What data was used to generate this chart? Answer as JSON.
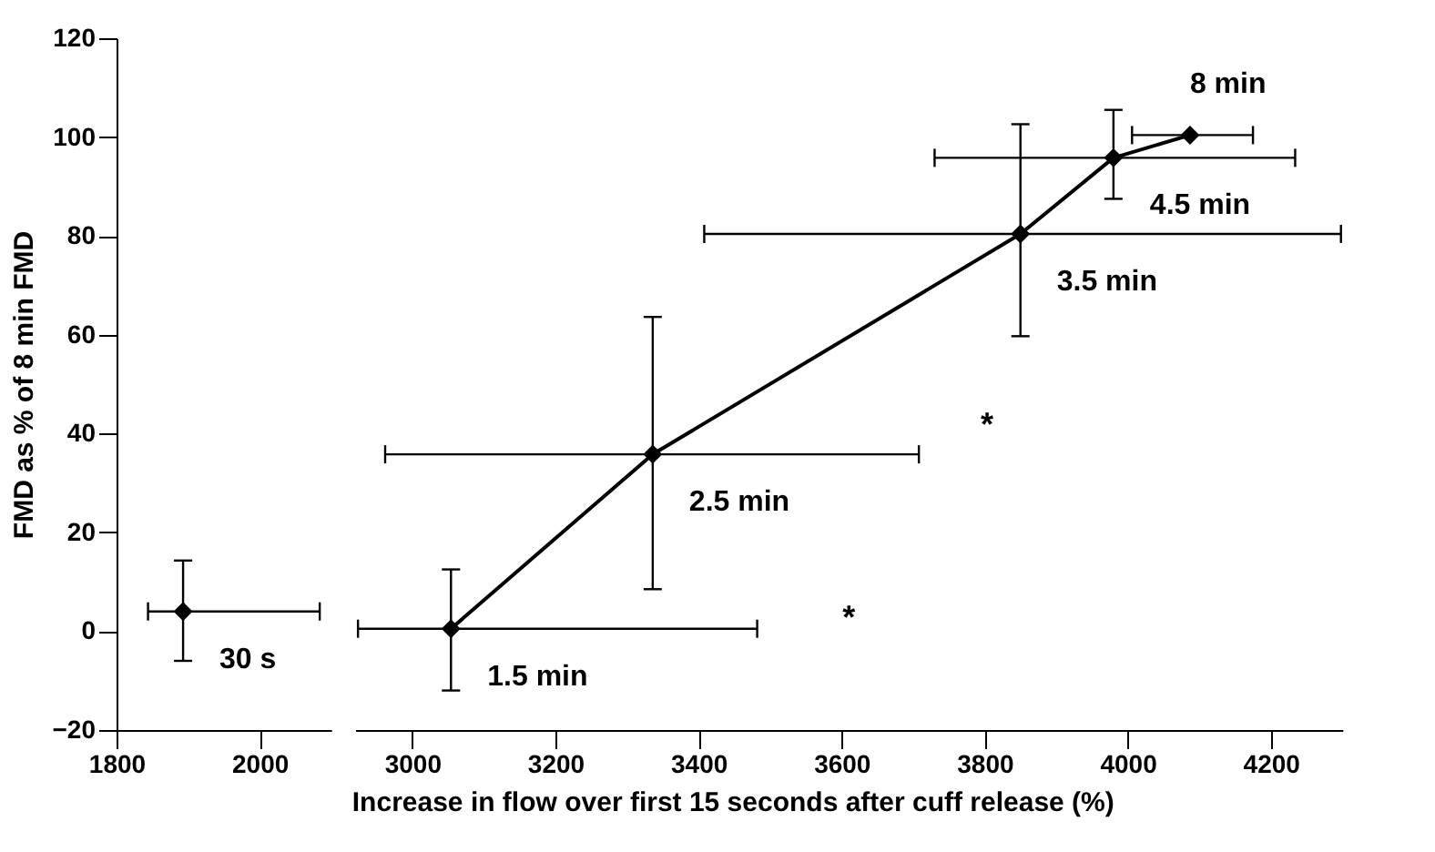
{
  "chart_data": [
    {
      "type": "scatter",
      "marker": "diamond",
      "ylabel": "FMD as % of 8 min FMD",
      "xlim": [
        1800,
        2100
      ],
      "xticks": [
        1800,
        2000
      ],
      "ylim": [
        -20,
        120
      ],
      "yticks": [
        -20,
        0,
        20,
        40,
        60,
        80,
        100,
        120
      ],
      "x": [
        1893
      ],
      "series": [
        {
          "color": "#000000",
          "values": [
            4
          ],
          "errors": [
            [
              -6,
              14.3
            ]
          ],
          "xerrors": [
            [
              1844,
              2084
            ]
          ]
        }
      ],
      "annotations": [
        {
          "text": "30 s",
          "x": 1893,
          "y": 4
        }
      ]
    },
    {
      "type": "line",
      "marker": "diamond",
      "tick_labels": "x",
      "xlabel": "Increase in flow over first 15 seconds after cuff release (%)",
      "xlim": [
        2920,
        4300
      ],
      "xticks": [
        3000,
        3200,
        3400,
        3600,
        3800,
        4000,
        4200
      ],
      "ylim": [
        -20,
        120
      ],
      "yticks": [
        -20,
        0,
        20,
        40,
        60,
        80,
        100,
        120
      ],
      "x": [
        3054,
        3336,
        3850,
        3980,
        4087
      ],
      "series": [
        {
          "color": "#000000",
          "values": [
            0.5,
            35.8,
            80.4,
            95.8,
            100.4
          ],
          "errors": [
            [
              -12,
              12.5
            ],
            [
              8.5,
              63.6
            ],
            [
              59.7,
              102.6
            ],
            [
              87.5,
              105.5
            ],
            null
          ],
          "xerrors": [
            [
              2924,
              3482
            ],
            [
              2962,
              3708
            ],
            [
              3408,
              4298
            ],
            [
              3730,
              4234
            ],
            [
              4006,
              4175
            ]
          ]
        }
      ],
      "annotations": [
        {
          "text": "1.5 min",
          "x": 3054,
          "y": 0.5
        },
        {
          "text": "2.5 min",
          "x": 3336,
          "y": 35.8
        },
        {
          "text": "3.5 min",
          "x": 3850,
          "y": 80.4
        },
        {
          "text": "4.5 min",
          "x": 3980,
          "y": 95.8
        },
        {
          "text": "8 min",
          "x": 4087,
          "y": 100.4
        },
        "*",
        "*"
      ]
    }
  ]
}
